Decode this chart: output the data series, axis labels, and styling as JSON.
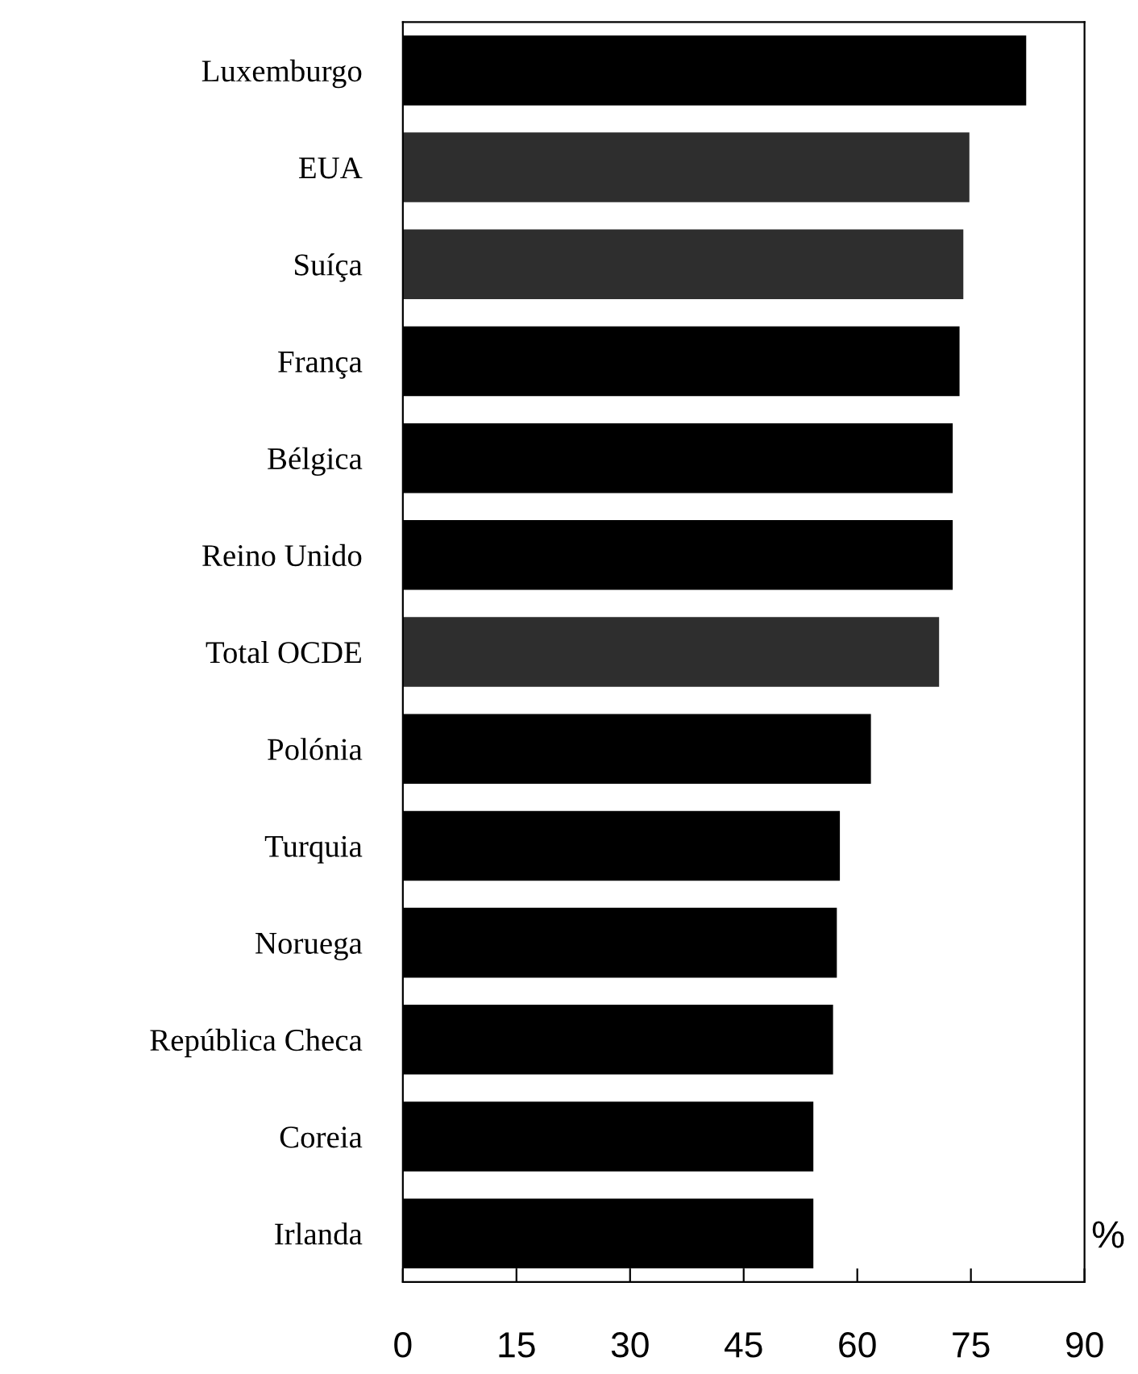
{
  "chart_data": {
    "type": "bar",
    "orientation": "horizontal",
    "categories": [
      "Luxemburgo",
      "EUA",
      "Suíça",
      "França",
      "Bélgica",
      "Reino Unido",
      "Total OCDE",
      "Polónia",
      "Turquia",
      "Noruega",
      "República Checa",
      "Coreia",
      "Irlanda"
    ],
    "values": [
      82.3,
      74.8,
      74.0,
      73.5,
      72.6,
      72.6,
      70.8,
      61.8,
      57.7,
      57.3,
      56.8,
      54.2,
      54.2
    ],
    "colors": [
      "#000000",
      "#2e2e2e",
      "#2e2e2e",
      "#000000",
      "#000000",
      "#000000",
      "#2e2e2e",
      "#000000",
      "#000000",
      "#000000",
      "#000000",
      "#000000",
      "#000000"
    ],
    "xlim": [
      0,
      90
    ],
    "xticks": [
      0,
      15,
      30,
      45,
      60,
      75,
      90
    ],
    "xlabel": "%",
    "grid": false,
    "legend": false
  }
}
